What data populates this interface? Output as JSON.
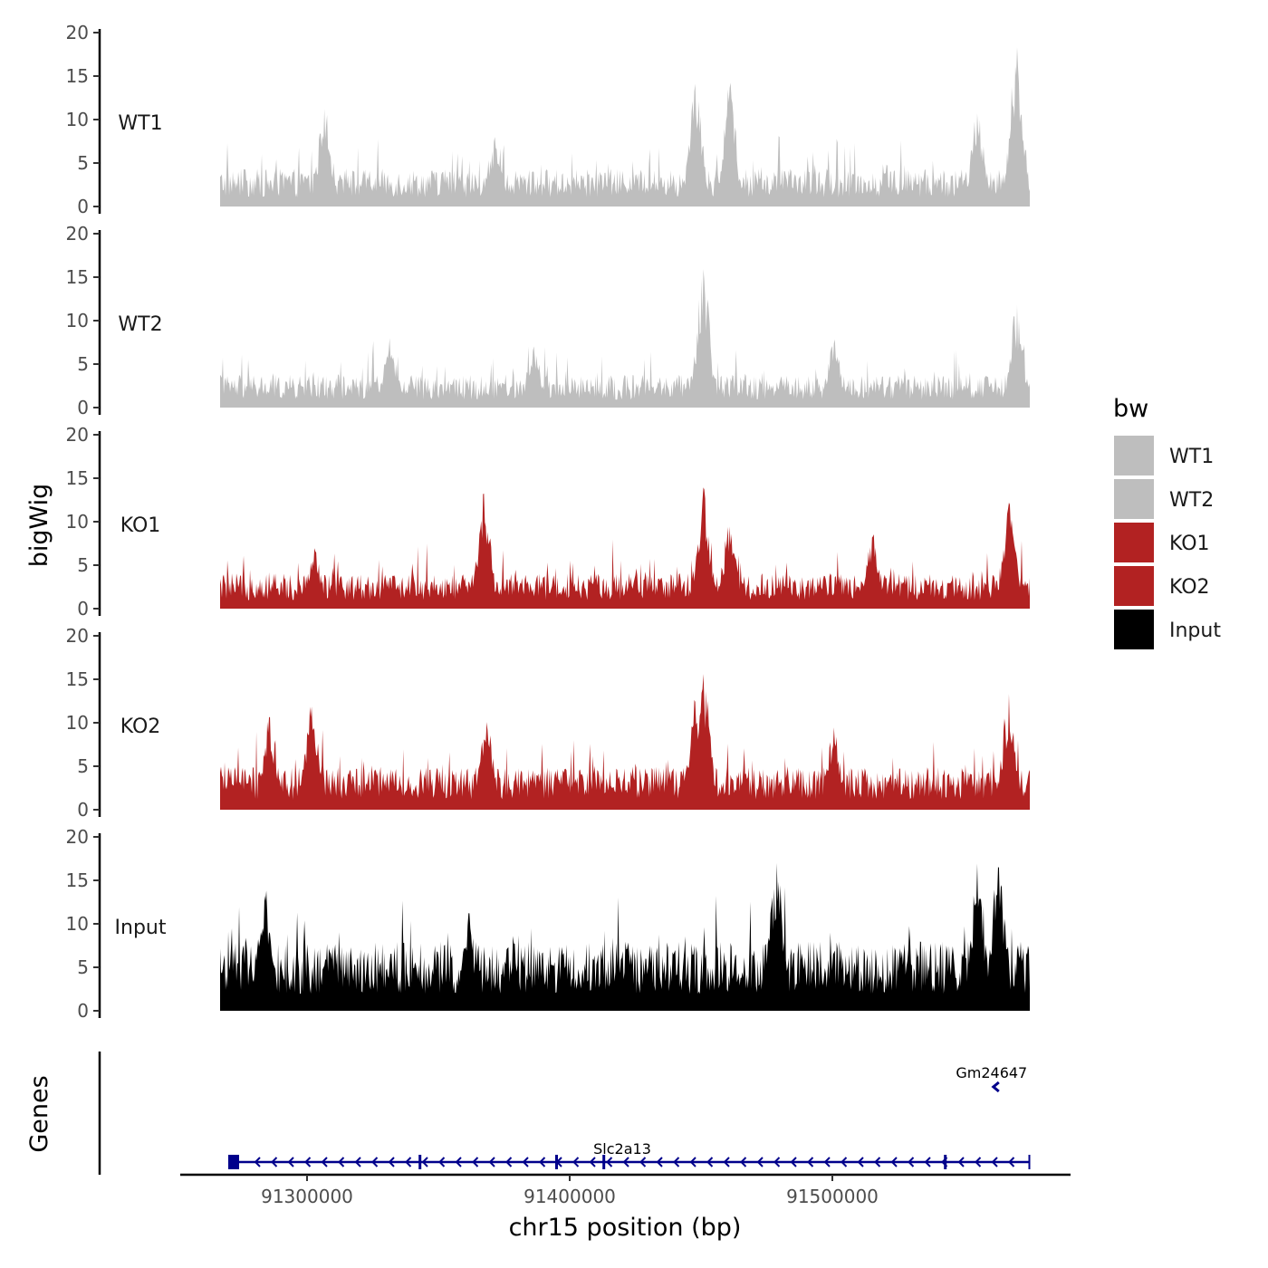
{
  "chart_data": {
    "type": "area",
    "title": "",
    "region": {
      "chromosome": "chr15",
      "start": 91270000,
      "end": 91580000
    },
    "xlabel": "chr15 position (bp)",
    "ylabel": "bigWig",
    "genes_label": "Genes",
    "xticks": [
      91300000,
      91400000,
      91500000
    ],
    "xtick_labels": [
      "91300000",
      "91400000",
      "91500000"
    ],
    "ylim": [
      0,
      20
    ],
    "yticks": [
      0,
      5,
      10,
      15,
      20
    ],
    "ytick_labels": [
      "0",
      "5",
      "10",
      "15",
      "20"
    ],
    "legend": {
      "title": "bw",
      "position": "right"
    },
    "series": [
      {
        "name": "WT1",
        "color": "#bebebe",
        "base": 3.0,
        "noise": 2.6,
        "peaks": [
          [
            91310000,
            11.5
          ],
          [
            91375000,
            8.0
          ],
          [
            91452000,
            15.0
          ],
          [
            91465000,
            14.5
          ],
          [
            91560000,
            11.0
          ],
          [
            91575000,
            19.0
          ]
        ]
      },
      {
        "name": "WT2",
        "color": "#bebebe",
        "base": 2.6,
        "noise": 2.4,
        "peaks": [
          [
            91335000,
            8.0
          ],
          [
            91390000,
            7.5
          ],
          [
            91455000,
            16.0
          ],
          [
            91505000,
            8.0
          ],
          [
            91575000,
            12.0
          ]
        ]
      },
      {
        "name": "KO1",
        "color": "#b22222",
        "base": 2.8,
        "noise": 2.4,
        "peaks": [
          [
            91306000,
            7.5
          ],
          [
            91371000,
            13.5
          ],
          [
            91455000,
            14.5
          ],
          [
            91465000,
            10.0
          ],
          [
            91520000,
            9.0
          ],
          [
            91572000,
            12.5
          ]
        ]
      },
      {
        "name": "KO2",
        "color": "#b22222",
        "base": 3.4,
        "noise": 2.6,
        "peaks": [
          [
            91289000,
            11.0
          ],
          [
            91305000,
            12.5
          ],
          [
            91372000,
            10.5
          ],
          [
            91452000,
            13.0
          ],
          [
            91455000,
            16.5
          ],
          [
            91505000,
            9.5
          ],
          [
            91572000,
            13.5
          ]
        ]
      },
      {
        "name": "Input",
        "color": "#000000",
        "base": 5.5,
        "noise": 3.6,
        "peaks": [
          [
            91287000,
            14.5
          ],
          [
            91365000,
            11.5
          ],
          [
            91483000,
            17.5
          ],
          [
            91560000,
            17.0
          ],
          [
            91568000,
            17.0
          ]
        ]
      }
    ],
    "genes": [
      {
        "name": "Slc2a13",
        "start": 91270000,
        "end": 91575000,
        "strand": "-",
        "row": 0
      },
      {
        "name": "Gm24647",
        "start": 91561000,
        "end": 91563000,
        "strand": "-",
        "row": 1
      }
    ],
    "gene_color": "#00008b"
  }
}
